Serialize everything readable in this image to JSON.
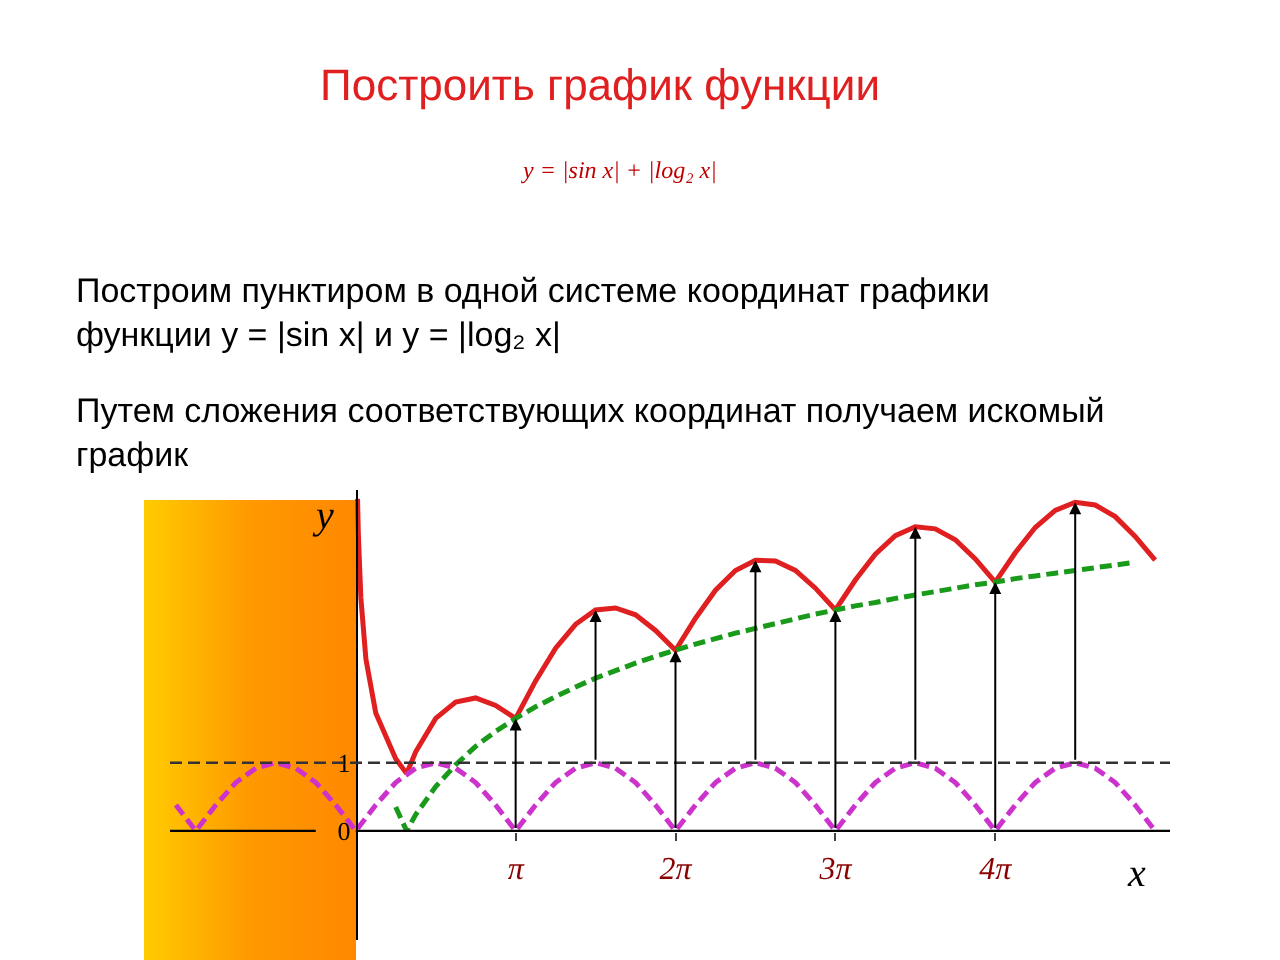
{
  "chart_data": {
    "type": "line",
    "title": "Построить график функции",
    "subtitle": "y = |sin x| + |log₂ x|",
    "annotations": [
      "Построим пунктиром в одной системе координат графики функции y = |sin x| и y = |log₂ x|",
      "Путем сложения соответствующих координат получаем искомый график"
    ],
    "xlabel": "x",
    "ylabel": "y",
    "xlim": [
      -3.65,
      16.0
    ],
    "ylim": [
      -1.6,
      5.0
    ],
    "xticks": [
      {
        "value": 3.142,
        "label": "π"
      },
      {
        "value": 6.283,
        "label": "2π"
      },
      {
        "value": 9.425,
        "label": "3π"
      },
      {
        "value": 12.566,
        "label": "4π"
      }
    ],
    "yticks": [
      0,
      1
    ],
    "grid": false,
    "marker": "none",
    "ref_lines": [
      {
        "axis": "y",
        "value": 1,
        "label": null,
        "color": "#333333",
        "line_style": "dashed"
      }
    ],
    "series": [
      {
        "color": "#e02020",
        "line_style": "solid",
        "x": [
          0.035,
          0.05,
          0.1,
          0.2,
          0.393,
          0.785,
          1,
          1.178,
          1.571,
          1.963,
          2.356,
          2.749,
          3.142,
          3.534,
          3.927,
          4.32,
          4.712,
          5.105,
          5.498,
          5.89,
          6.283,
          6.676,
          7.069,
          7.461,
          7.854,
          8.247,
          8.639,
          9.032,
          9.425,
          9.817,
          10.21,
          10.603,
          10.996,
          11.388,
          11.781,
          12.174,
          12.566,
          12.959,
          13.352,
          13.744,
          14.137,
          14.53,
          14.923,
          15.315,
          15.708
        ],
        "values": [
          4.87,
          4.37,
          3.42,
          2.52,
          1.73,
          1.06,
          0.84,
          1.16,
          1.65,
          1.89,
          1.95,
          1.84,
          1.65,
          2.2,
          2.68,
          3.03,
          3.24,
          3.27,
          3.17,
          2.94,
          2.65,
          3.12,
          3.53,
          3.82,
          3.97,
          3.96,
          3.82,
          3.56,
          3.24,
          3.68,
          4.06,
          4.33,
          4.46,
          4.43,
          4.27,
          3.99,
          3.65,
          4.08,
          4.45,
          4.7,
          4.82,
          4.78,
          4.61,
          4.32,
          3.97
        ]
      },
      {
        "color": "#1a9a1a",
        "line_style": "dashed",
        "x": [
          0.785,
          1,
          1.178,
          1.571,
          1.963,
          2.356,
          2.749,
          3.142,
          3.534,
          3.927,
          4.32,
          4.712,
          5.105,
          5.498,
          5.89,
          6.283,
          6.676,
          7.069,
          7.461,
          7.854,
          8.247,
          8.639,
          9.032,
          9.425,
          9.817,
          10.21,
          10.603,
          10.996,
          11.388,
          11.781,
          12.174,
          12.566,
          12.959,
          13.352,
          13.744,
          14.137,
          14.53,
          14.923,
          15.315
        ],
        "values": [
          0.35,
          0,
          0.24,
          0.65,
          0.97,
          1.24,
          1.46,
          1.65,
          1.82,
          1.97,
          2.11,
          2.24,
          2.35,
          2.46,
          2.56,
          2.65,
          2.74,
          2.82,
          2.9,
          2.97,
          3.04,
          3.11,
          3.18,
          3.24,
          3.3,
          3.35,
          3.41,
          3.46,
          3.51,
          3.56,
          3.61,
          3.65,
          3.7,
          3.74,
          3.78,
          3.82,
          3.86,
          3.9,
          3.94
        ]
      },
      {
        "color": "#cc33cc",
        "line_style": "dashed",
        "x": [
          -3.534,
          -3.142,
          -2.749,
          -2.356,
          -1.963,
          -1.571,
          -1.178,
          -0.785,
          -0.393,
          0,
          0.393,
          0.785,
          1.178,
          1.571,
          1.963,
          2.356,
          2.749,
          3.142,
          3.534,
          3.927,
          4.32,
          4.712,
          5.105,
          5.498,
          5.89,
          6.283,
          6.676,
          7.069,
          7.461,
          7.854,
          8.247,
          8.639,
          9.032,
          9.425,
          9.817,
          10.21,
          10.603,
          10.996,
          11.388,
          11.781,
          12.174,
          12.566,
          12.959,
          13.352,
          13.744,
          14.137,
          14.53,
          14.923,
          15.315,
          15.708
        ],
        "values": [
          0.38,
          0,
          0.38,
          0.71,
          0.92,
          1,
          0.92,
          0.71,
          0.38,
          0,
          0.38,
          0.71,
          0.92,
          1,
          0.92,
          0.71,
          0.38,
          0,
          0.38,
          0.71,
          0.92,
          1,
          0.92,
          0.71,
          0.38,
          0,
          0.38,
          0.71,
          0.92,
          1,
          0.92,
          0.71,
          0.38,
          0,
          0.38,
          0.71,
          0.92,
          1,
          0.92,
          0.71,
          0.38,
          0,
          0.38,
          0.71,
          0.92,
          1,
          0.92,
          0.71,
          0.38,
          0
        ]
      }
    ]
  }
}
